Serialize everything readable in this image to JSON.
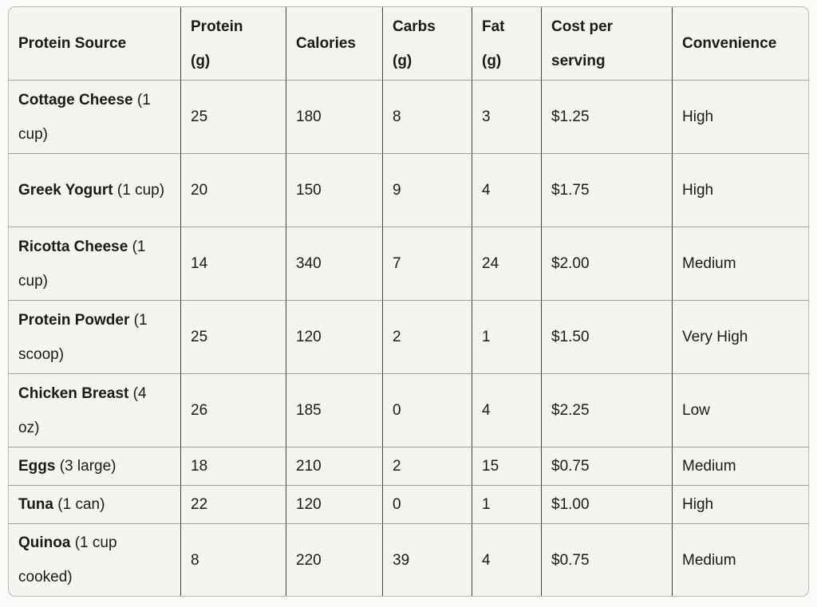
{
  "theme": {
    "page_bg": "#fafaf9",
    "cell_bg": "#f5f4ee",
    "text_color": "#1a1a17",
    "vertical_border": "#3f3f3b",
    "horizontal_border": "#a3a29a",
    "outer_border": "#b9b8b1"
  },
  "table": {
    "columns": [
      {
        "id": "source",
        "label": "Protein Source",
        "label_lines": [
          "Protein Source"
        ]
      },
      {
        "id": "protein",
        "label": "Protein (g)",
        "label_lines": [
          "Protein",
          "(g)"
        ]
      },
      {
        "id": "calories",
        "label": "Calories",
        "label_lines": [
          "Calories"
        ]
      },
      {
        "id": "carbs",
        "label": "Carbs (g)",
        "label_lines": [
          "Carbs",
          "(g)"
        ]
      },
      {
        "id": "fat",
        "label": "Fat (g)",
        "label_lines": [
          "Fat",
          "(g)"
        ]
      },
      {
        "id": "cost",
        "label": "Cost per serving",
        "label_lines": [
          "Cost per",
          "serving"
        ]
      },
      {
        "id": "convenience",
        "label": "Convenience",
        "label_lines": [
          "Convenience"
        ]
      }
    ],
    "rows": [
      {
        "source": "Cottage Cheese",
        "serving": "(1 cup)",
        "protein": "25",
        "calories": "180",
        "carbs": "8",
        "fat": "3",
        "cost": "$1.25",
        "convenience": "High"
      },
      {
        "source": "Greek Yogurt",
        "serving": "(1 cup)",
        "protein": "20",
        "calories": "150",
        "carbs": "9",
        "fat": "4",
        "cost": "$1.75",
        "convenience": "High"
      },
      {
        "source": "Ricotta Cheese",
        "serving": "(1 cup)",
        "protein": "14",
        "calories": "340",
        "carbs": "7",
        "fat": "24",
        "cost": "$2.00",
        "convenience": "Medium"
      },
      {
        "source": "Protein Powder",
        "serving": "(1 scoop)",
        "protein": "25",
        "calories": "120",
        "carbs": "2",
        "fat": "1",
        "cost": "$1.50",
        "convenience": "Very High"
      },
      {
        "source": "Chicken Breast",
        "serving": "(4 oz)",
        "protein": "26",
        "calories": "185",
        "carbs": "0",
        "fat": "4",
        "cost": "$2.25",
        "convenience": "Low"
      },
      {
        "source": "Eggs",
        "serving": "(3 large)",
        "protein": "18",
        "calories": "210",
        "carbs": "2",
        "fat": "15",
        "cost": "$0.75",
        "convenience": "Medium"
      },
      {
        "source": "Tuna",
        "serving": "(1 can)",
        "protein": "22",
        "calories": "120",
        "carbs": "0",
        "fat": "1",
        "cost": "$1.00",
        "convenience": "High"
      },
      {
        "source": "Quinoa",
        "serving": "(1 cup cooked)",
        "protein": "8",
        "calories": "220",
        "carbs": "39",
        "fat": "4",
        "cost": "$0.75",
        "convenience": "Medium"
      }
    ]
  },
  "chart_data": {
    "type": "table",
    "columns": [
      "Protein Source",
      "Protein (g)",
      "Calories",
      "Carbs (g)",
      "Fat (g)",
      "Cost per serving",
      "Convenience"
    ],
    "rows": [
      [
        "Cottage Cheese (1 cup)",
        25,
        180,
        8,
        3,
        "$1.25",
        "High"
      ],
      [
        "Greek Yogurt (1 cup)",
        20,
        150,
        9,
        4,
        "$1.75",
        "High"
      ],
      [
        "Ricotta Cheese (1 cup)",
        14,
        340,
        7,
        24,
        "$2.00",
        "Medium"
      ],
      [
        "Protein Powder (1 scoop)",
        25,
        120,
        2,
        1,
        "$1.50",
        "Very High"
      ],
      [
        "Chicken Breast (4 oz)",
        26,
        185,
        0,
        4,
        "$2.25",
        "Low"
      ],
      [
        "Eggs (3 large)",
        18,
        210,
        2,
        15,
        "$0.75",
        "Medium"
      ],
      [
        "Tuna (1 can)",
        22,
        120,
        0,
        1,
        "$1.00",
        "High"
      ],
      [
        "Quinoa (1 cup cooked)",
        8,
        220,
        39,
        4,
        "$0.75",
        "Medium"
      ]
    ]
  }
}
